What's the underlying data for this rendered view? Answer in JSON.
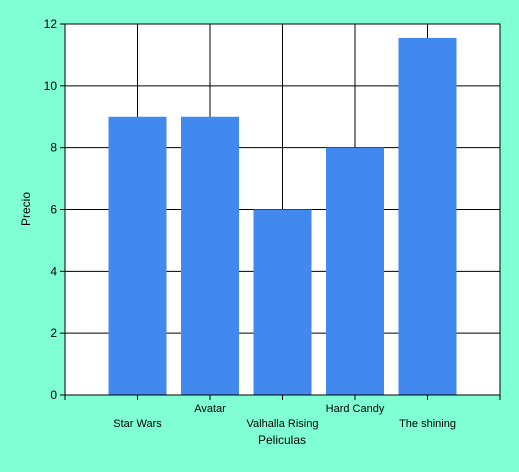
{
  "chart_data": {
    "type": "bar",
    "categories": [
      "Star Wars",
      "Avatar",
      "Valhalla Rising",
      "Hard Candy",
      "The shining"
    ],
    "values": [
      9,
      9,
      6,
      8,
      11.55
    ],
    "xlabel": "Peliculas",
    "ylabel": "Precio",
    "ylim": [
      0,
      12
    ],
    "yticks": [
      "0",
      "2",
      "4",
      "6",
      "8",
      "10",
      "12"
    ],
    "grid": true,
    "legend": "none"
  },
  "colors": {
    "background": "#80ffd4",
    "plot_area": "#ffffff",
    "bar": "#4189ee",
    "grid": "#000000"
  }
}
